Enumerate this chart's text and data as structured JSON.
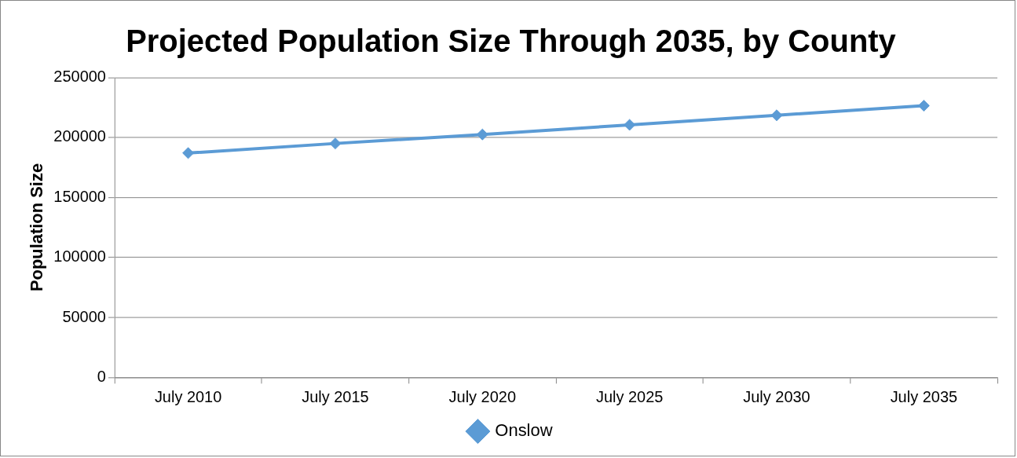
{
  "chart_data": {
    "type": "line",
    "title": "Projected Population Size Through 2035, by County",
    "ylabel": "Population Size",
    "categories": [
      "July 2010",
      "July 2015",
      "July 2020",
      "July 2025",
      "July 2030",
      "July 2035"
    ],
    "series": [
      {
        "name": "Onslow",
        "color": "#5b9bd5",
        "values": [
          187000,
          195000,
          202500,
          210500,
          218500,
          226500
        ]
      }
    ],
    "ylim": [
      0,
      250000
    ],
    "yticks": [
      0,
      50000,
      100000,
      150000,
      200000,
      250000
    ],
    "grid": "y",
    "legend": "bottom",
    "marker": "diamond",
    "line_style": "solid"
  }
}
